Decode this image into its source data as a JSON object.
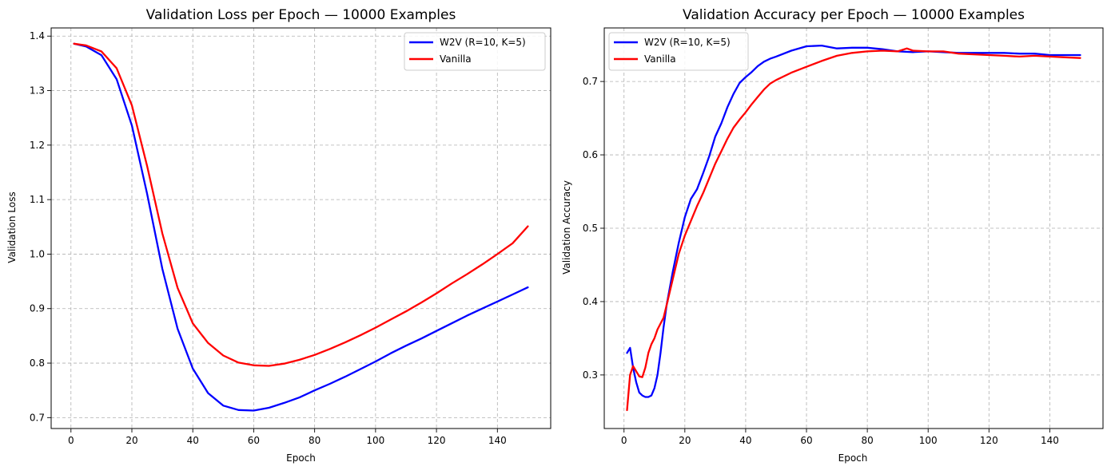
{
  "chart_data": [
    {
      "type": "line",
      "title": "Validation Loss per Epoch — 10000 Examples",
      "xlabel": "Epoch",
      "ylabel": "Validation Loss",
      "xlim": [
        -6.5,
        157.5
      ],
      "ylim": [
        0.68,
        1.415
      ],
      "xticks": [
        0,
        20,
        40,
        60,
        80,
        100,
        120,
        140
      ],
      "yticks": [
        0.7,
        0.8,
        0.9,
        1.0,
        1.1,
        1.2,
        1.3,
        1.4
      ],
      "xtick_labels": [
        "0",
        "20",
        "40",
        "60",
        "80",
        "100",
        "120",
        "140"
      ],
      "ytick_labels": [
        "0.7",
        "0.8",
        "0.9",
        "1.0",
        "1.1",
        "1.2",
        "1.3",
        "1.4"
      ],
      "grid": true,
      "legend": "top-right",
      "series": [
        {
          "name": "W2V (R=10, K=5)",
          "color": "#0000ff",
          "x": [
            1,
            5,
            10,
            15,
            20,
            25,
            30,
            35,
            40,
            45,
            50,
            55,
            60,
            65,
            70,
            75,
            80,
            85,
            90,
            95,
            100,
            105,
            110,
            115,
            120,
            125,
            130,
            135,
            140,
            145,
            150
          ],
          "y": [
            1.386,
            1.381,
            1.365,
            1.321,
            1.236,
            1.111,
            0.973,
            0.863,
            0.79,
            0.745,
            0.722,
            0.714,
            0.713,
            0.718,
            0.727,
            0.737,
            0.75,
            0.762,
            0.775,
            0.789,
            0.803,
            0.818,
            0.832,
            0.845,
            0.859,
            0.873,
            0.887,
            0.9,
            0.913,
            0.926,
            0.939
          ]
        },
        {
          "name": "Vanilla",
          "color": "#ff0000",
          "x": [
            1,
            5,
            10,
            15,
            20,
            25,
            30,
            35,
            40,
            45,
            50,
            55,
            60,
            65,
            70,
            75,
            80,
            85,
            90,
            95,
            100,
            105,
            110,
            115,
            120,
            125,
            130,
            135,
            140,
            145,
            150
          ],
          "y": [
            1.386,
            1.383,
            1.372,
            1.341,
            1.273,
            1.162,
            1.038,
            0.938,
            0.873,
            0.837,
            0.814,
            0.801,
            0.796,
            0.795,
            0.799,
            0.806,
            0.815,
            0.826,
            0.838,
            0.851,
            0.865,
            0.88,
            0.895,
            0.911,
            0.928,
            0.946,
            0.963,
            0.981,
            1.0,
            1.02,
            1.051
          ]
        }
      ]
    },
    {
      "type": "line",
      "title": "Validation Accuracy per Epoch — 10000 Examples",
      "xlabel": "Epoch",
      "ylabel": "Validation Accuracy",
      "xlim": [
        -6.5,
        157.5
      ],
      "ylim": [
        0.227,
        0.773
      ],
      "xticks": [
        0,
        20,
        40,
        60,
        80,
        100,
        120,
        140
      ],
      "yticks": [
        0.3,
        0.4,
        0.5,
        0.6,
        0.7
      ],
      "xtick_labels": [
        "0",
        "20",
        "40",
        "60",
        "80",
        "100",
        "120",
        "140"
      ],
      "ytick_labels": [
        "0.3",
        "0.4",
        "0.5",
        "0.6",
        "0.7"
      ],
      "grid": true,
      "legend": "top-left",
      "series": [
        {
          "name": "W2V (R=10, K=5)",
          "color": "#0000ff",
          "x": [
            1,
            2,
            3,
            4,
            5,
            6,
            7,
            8,
            9,
            10,
            11,
            12,
            13,
            14,
            16,
            18,
            20,
            22,
            24,
            26,
            28,
            30,
            32,
            34,
            36,
            38,
            40,
            42,
            44,
            46,
            48,
            50,
            55,
            60,
            65,
            70,
            75,
            80,
            85,
            90,
            95,
            100,
            105,
            110,
            115,
            120,
            125,
            130,
            135,
            140,
            145,
            150
          ],
          "y": [
            0.33,
            0.337,
            0.31,
            0.29,
            0.276,
            0.272,
            0.27,
            0.27,
            0.272,
            0.282,
            0.3,
            0.33,
            0.365,
            0.395,
            0.44,
            0.48,
            0.515,
            0.54,
            0.553,
            0.575,
            0.598,
            0.625,
            0.643,
            0.665,
            0.683,
            0.698,
            0.706,
            0.713,
            0.721,
            0.727,
            0.731,
            0.734,
            0.742,
            0.748,
            0.749,
            0.745,
            0.746,
            0.746,
            0.744,
            0.741,
            0.74,
            0.741,
            0.74,
            0.739,
            0.739,
            0.739,
            0.739,
            0.738,
            0.738,
            0.736,
            0.736,
            0.736
          ]
        },
        {
          "name": "Vanilla",
          "color": "#ff0000",
          "x": [
            1,
            2,
            3,
            4,
            5,
            6,
            7,
            8,
            9,
            10,
            11,
            12,
            13,
            14,
            16,
            18,
            20,
            22,
            24,
            26,
            28,
            30,
            32,
            34,
            36,
            38,
            40,
            42,
            44,
            46,
            48,
            50,
            55,
            60,
            65,
            70,
            75,
            80,
            85,
            90,
            93,
            95,
            100,
            105,
            110,
            115,
            120,
            125,
            130,
            135,
            140,
            145,
            150
          ],
          "y": [
            0.252,
            0.3,
            0.312,
            0.305,
            0.298,
            0.297,
            0.31,
            0.33,
            0.342,
            0.35,
            0.362,
            0.37,
            0.378,
            0.395,
            0.43,
            0.465,
            0.49,
            0.51,
            0.53,
            0.548,
            0.568,
            0.588,
            0.605,
            0.622,
            0.637,
            0.648,
            0.658,
            0.669,
            0.679,
            0.689,
            0.697,
            0.702,
            0.712,
            0.72,
            0.728,
            0.735,
            0.739,
            0.741,
            0.742,
            0.741,
            0.745,
            0.742,
            0.741,
            0.741,
            0.738,
            0.737,
            0.736,
            0.735,
            0.734,
            0.735,
            0.734,
            0.733,
            0.732
          ]
        }
      ]
    }
  ]
}
